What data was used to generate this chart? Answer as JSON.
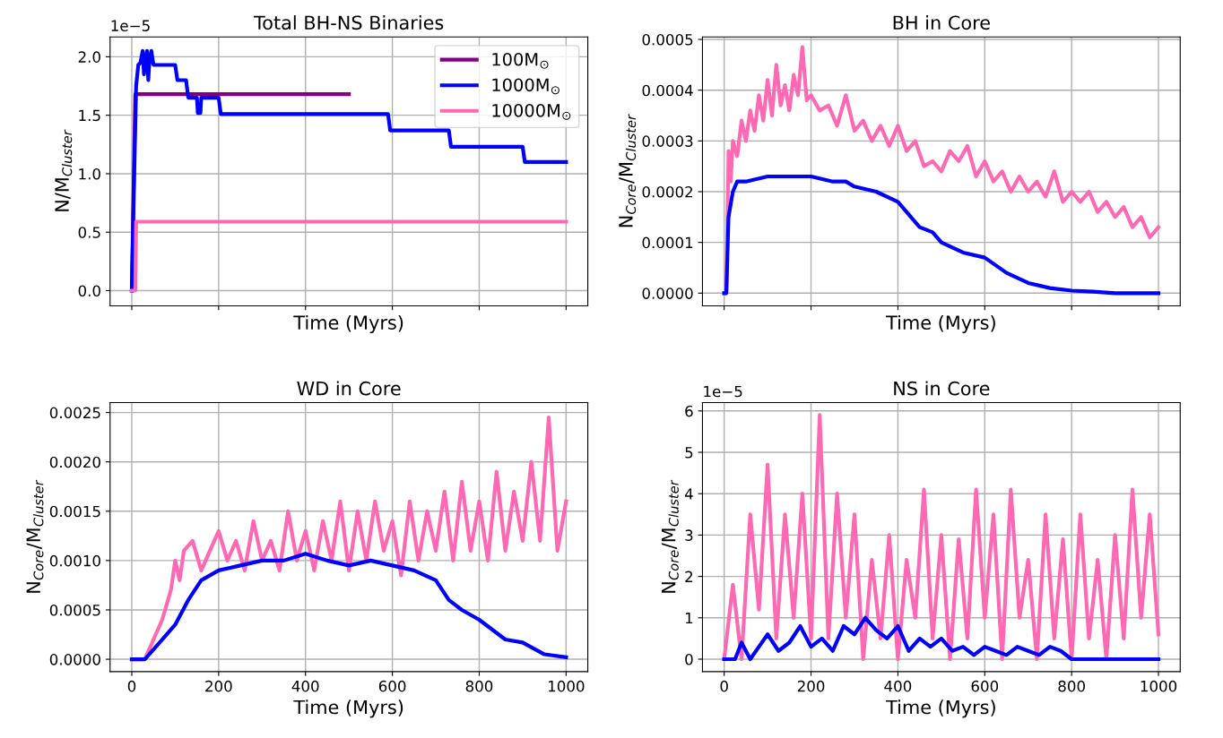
{
  "chart_data": [
    {
      "type": "line",
      "title": "Total BH-NS Binaries",
      "xlabel": "Time (Myrs)",
      "ylabel": "N/M$_{Cluster}$",
      "annotations": [
        "1e−5"
      ],
      "xlim": [
        -50,
        1050
      ],
      "xticks": [
        0,
        200,
        400,
        600,
        800,
        1000
      ],
      "ylim": [
        -0.13,
        2.17
      ],
      "yticks": [
        {
          "value": 0,
          "label": "0.0"
        },
        0.5,
        {
          "value": 1,
          "label": "1.0"
        },
        1.5,
        {
          "value": 2,
          "label": "2.0"
        }
      ],
      "tick_labels": "y",
      "grid": true,
      "legend": "top right",
      "series": [
        {
          "name": "100M$_{⊙}$",
          "color": "#800080",
          "x": [
            0,
            8,
            500
          ],
          "values": [
            0,
            1.68,
            1.68
          ]
        },
        {
          "name": "1000M$_{⊙}$",
          "color": "#0000ff",
          "x": [
            0,
            10,
            15,
            20,
            25,
            28,
            30,
            35,
            38,
            40,
            45,
            50,
            55,
            100,
            105,
            125,
            130,
            150,
            152,
            158,
            160,
            200,
            205,
            590,
            595,
            730,
            735,
            900,
            905,
            1000
          ],
          "values": [
            0,
            1.75,
            1.93,
            1.95,
            2.05,
            1.85,
            1.93,
            2.05,
            1.8,
            1.93,
            2.05,
            1.93,
            1.93,
            1.93,
            1.8,
            1.8,
            1.65,
            1.65,
            1.52,
            1.52,
            1.65,
            1.65,
            1.51,
            1.51,
            1.37,
            1.37,
            1.23,
            1.23,
            1.1,
            1.1
          ]
        },
        {
          "name": "10000M$_{⊙}$",
          "color": "#ff69b4",
          "x": [
            0,
            8,
            10,
            1000
          ],
          "values": [
            0,
            0,
            0.59,
            0.59
          ]
        }
      ]
    },
    {
      "type": "line",
      "title": "BH in Core",
      "xlabel": "Time (Myrs)",
      "ylabel": "N$_{Core}$/M$_{Cluster}$",
      "xlim": [
        -50,
        1050
      ],
      "xticks": [
        0,
        200,
        400,
        600,
        800,
        1000
      ],
      "ylim": [
        -2.5e-05,
        0.000505
      ],
      "yticks": [
        {
          "value": 0,
          "label": "0.0000"
        },
        0.0001,
        0.0002,
        0.0003,
        0.0004,
        0.0005
      ],
      "tick_labels": "y",
      "grid": true,
      "series": [
        {
          "color": "#ff69b4",
          "x": [
            0,
            5,
            10,
            15,
            20,
            30,
            40,
            50,
            60,
            70,
            80,
            90,
            100,
            110,
            120,
            130,
            140,
            150,
            160,
            170,
            180,
            190,
            200,
            220,
            240,
            260,
            280,
            300,
            320,
            340,
            360,
            380,
            400,
            420,
            440,
            460,
            480,
            500,
            520,
            540,
            560,
            580,
            600,
            620,
            640,
            660,
            680,
            700,
            720,
            740,
            760,
            780,
            800,
            820,
            840,
            860,
            880,
            900,
            920,
            940,
            960,
            980,
            1000
          ],
          "values": [
            0,
            0,
            0.00028,
            0.00022,
            0.0003,
            0.00027,
            0.00034,
            0.0003,
            0.00036,
            0.00032,
            0.00039,
            0.00034,
            0.00042,
            0.00035,
            0.00045,
            0.00037,
            0.00041,
            0.00036,
            0.00043,
            0.00039,
            0.000485,
            0.00038,
            0.00039,
            0.00036,
            0.00037,
            0.00033,
            0.00039,
            0.00032,
            0.00034,
            0.0003,
            0.00033,
            0.00029,
            0.00033,
            0.00028,
            0.0003,
            0.00025,
            0.00026,
            0.00024,
            0.00028,
            0.00026,
            0.00029,
            0.00023,
            0.00026,
            0.00022,
            0.00024,
            0.0002,
            0.00023,
            0.0002,
            0.00022,
            0.00019,
            0.00024,
            0.00018,
            0.0002,
            0.00018,
            0.0002,
            0.00016,
            0.00018,
            0.00015,
            0.00017,
            0.00013,
            0.00015,
            0.00011,
            0.00013
          ]
        },
        {
          "color": "#0000ff",
          "x": [
            0,
            5,
            10,
            20,
            30,
            50,
            100,
            150,
            200,
            250,
            280,
            300,
            350,
            400,
            420,
            450,
            480,
            500,
            550,
            600,
            650,
            700,
            750,
            800,
            850,
            900,
            1000
          ],
          "values": [
            0,
            0,
            0.00015,
            0.0002,
            0.00022,
            0.00022,
            0.00023,
            0.00023,
            0.00023,
            0.00022,
            0.00022,
            0.00021,
            0.0002,
            0.00018,
            0.00016,
            0.00013,
            0.00012,
            0.0001,
            8e-05,
            7e-05,
            4e-05,
            2e-05,
            1e-05,
            5e-06,
            3e-06,
            0,
            0
          ]
        }
      ]
    },
    {
      "type": "line",
      "title": "WD in Core",
      "xlabel": "Time (Myrs)",
      "ylabel": "N$_{Core}$/M$_{Cluster}$",
      "xlim": [
        -50,
        1050
      ],
      "xticks": [
        0,
        200,
        400,
        600,
        800,
        1000
      ],
      "ylim": [
        -0.000125,
        0.0026
      ],
      "yticks": [
        {
          "value": 0,
          "label": "0.0000"
        },
        0.0005,
        {
          "value": 0.001,
          "label": "0.0010"
        },
        0.0015,
        {
          "value": 0.002,
          "label": "0.0020"
        },
        0.0025
      ],
      "grid": true,
      "series": [
        {
          "color": "#ff69b4",
          "x": [
            0,
            30,
            50,
            70,
            90,
            100,
            110,
            120,
            140,
            160,
            180,
            200,
            220,
            240,
            260,
            280,
            300,
            320,
            340,
            360,
            380,
            400,
            420,
            440,
            460,
            480,
            500,
            520,
            540,
            560,
            580,
            600,
            620,
            640,
            660,
            680,
            700,
            720,
            740,
            760,
            780,
            800,
            820,
            840,
            860,
            880,
            900,
            920,
            940,
            960,
            980,
            1000
          ],
          "values": [
            0,
            0,
            0.0002,
            0.0004,
            0.0007,
            0.001,
            0.0008,
            0.0011,
            0.0012,
            0.0009,
            0.0011,
            0.0013,
            0.001,
            0.0012,
            0.0009,
            0.0014,
            0.001,
            0.0012,
            0.0009,
            0.0015,
            0.001,
            0.0013,
            0.0009,
            0.0014,
            0.001,
            0.0016,
            0.0009,
            0.0015,
            0.001,
            0.0016,
            0.0011,
            0.0014,
            0.00085,
            0.0016,
            0.001,
            0.0015,
            0.0011,
            0.0017,
            0.001,
            0.0018,
            0.0011,
            0.0016,
            0.001,
            0.0019,
            0.0011,
            0.0017,
            0.0012,
            0.002,
            0.0012,
            0.00245,
            0.0011,
            0.0016
          ]
        },
        {
          "color": "#0000ff",
          "x": [
            0,
            30,
            50,
            70,
            100,
            130,
            160,
            200,
            250,
            300,
            350,
            400,
            450,
            500,
            550,
            600,
            650,
            700,
            730,
            760,
            800,
            830,
            860,
            900,
            950,
            1000
          ],
          "values": [
            0,
            0,
            0.0001,
            0.0002,
            0.00035,
            0.0006,
            0.0008,
            0.0009,
            0.00095,
            0.001,
            0.001,
            0.00107,
            0.001,
            0.00095,
            0.001,
            0.00095,
            0.0009,
            0.0008,
            0.0006,
            0.0005,
            0.0004,
            0.0003,
            0.0002,
            0.00017,
            5e-05,
            2e-05
          ]
        }
      ]
    },
    {
      "type": "line",
      "title": "NS in Core",
      "xlabel": "Time (Myrs)",
      "ylabel": "N$_{Core}$/M$_{Cluster}$",
      "annotations": [
        "1e−5"
      ],
      "xlim": [
        -50,
        1050
      ],
      "xticks": [
        0,
        200,
        400,
        600,
        800,
        1000
      ],
      "ylim": [
        -0.3,
        6.2
      ],
      "yticks": [
        0,
        1,
        2,
        3,
        4,
        5,
        6
      ],
      "grid": true,
      "series": [
        {
          "color": "#ff69b4",
          "x": [
            0,
            20,
            40,
            60,
            80,
            100,
            120,
            140,
            160,
            180,
            200,
            220,
            240,
            260,
            280,
            300,
            320,
            340,
            360,
            380,
            400,
            420,
            440,
            460,
            480,
            500,
            520,
            540,
            560,
            580,
            600,
            620,
            640,
            660,
            680,
            700,
            720,
            740,
            760,
            780,
            800,
            820,
            840,
            860,
            880,
            900,
            920,
            940,
            960,
            980,
            1000
          ],
          "values": [
            0,
            1.8,
            0,
            3.5,
            1.2,
            4.7,
            0.5,
            3.5,
            1,
            4,
            0.5,
            5.9,
            0.5,
            4,
            1,
            3.5,
            0,
            2.4,
            0.5,
            3,
            0,
            2.4,
            1,
            4.1,
            0.5,
            3,
            0,
            2.9,
            0.5,
            4.1,
            1,
            3.5,
            0,
            4.1,
            1,
            2.4,
            0,
            3.5,
            0.5,
            2.9,
            0,
            3.5,
            0.5,
            2.4,
            0,
            3,
            0.5,
            4.1,
            1,
            3.5,
            0.6
          ]
        },
        {
          "color": "#0000ff",
          "x": [
            0,
            25,
            40,
            60,
            80,
            100,
            125,
            150,
            175,
            200,
            225,
            250,
            275,
            300,
            325,
            350,
            375,
            400,
            425,
            450,
            475,
            500,
            525,
            550,
            575,
            600,
            625,
            650,
            675,
            700,
            725,
            750,
            775,
            800,
            1000
          ],
          "values": [
            0,
            0,
            0.4,
            0,
            0.3,
            0.6,
            0.2,
            0.4,
            0.8,
            0.3,
            0.5,
            0.2,
            0.8,
            0.6,
            1,
            0.7,
            0.5,
            0.8,
            0.2,
            0.5,
            0.3,
            0.5,
            0.2,
            0.3,
            0.1,
            0.3,
            0.2,
            0.1,
            0.3,
            0.2,
            0.1,
            0.3,
            0.2,
            0,
            0
          ]
        }
      ]
    }
  ]
}
